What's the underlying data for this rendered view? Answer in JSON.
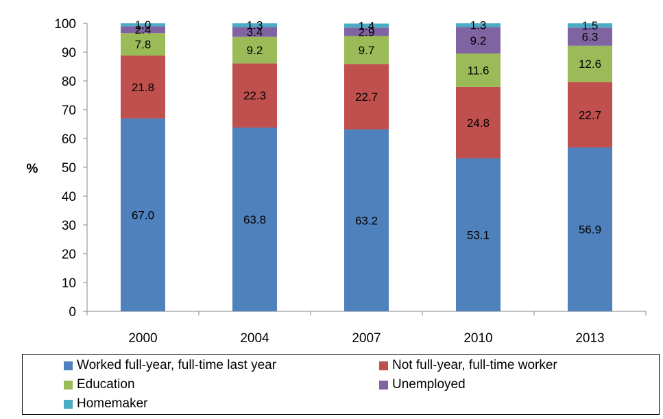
{
  "chart_data": {
    "type": "bar",
    "stacked": true,
    "title": "",
    "xlabel": "",
    "ylabel": "%",
    "ylim": [
      0,
      100
    ],
    "yticks": [
      0,
      10,
      20,
      30,
      40,
      50,
      60,
      70,
      80,
      90,
      100
    ],
    "categories": [
      "2000",
      "2004",
      "2007",
      "2010",
      "2013"
    ],
    "series": [
      {
        "name": "Worked full-year, full-time last year",
        "color": "#4F81BD",
        "values": [
          67.0,
          63.8,
          63.2,
          53.1,
          56.9
        ],
        "labels": [
          "67.0",
          "63.8",
          "63.2",
          "53.1",
          "56.9"
        ]
      },
      {
        "name": "Not full-year, full-time worker",
        "color": "#C0504D",
        "values": [
          21.8,
          22.3,
          22.7,
          24.8,
          22.7
        ],
        "labels": [
          "21.8",
          "22.3",
          "22.7",
          "24.8",
          "22.7"
        ]
      },
      {
        "name": "Education",
        "color": "#9BBB59",
        "values": [
          7.8,
          9.2,
          9.7,
          11.6,
          12.6
        ],
        "labels": [
          "7.8",
          "9.2",
          "9.7",
          "11.6",
          "12.6"
        ]
      },
      {
        "name": "Unemployed",
        "color": "#8064A2",
        "values": [
          2.4,
          3.4,
          2.9,
          9.2,
          6.3
        ],
        "labels": [
          "2.4",
          "3.4",
          "2.9",
          "9.2",
          "6.3"
        ]
      },
      {
        "name": "Homemaker",
        "color": "#4BACC6",
        "values": [
          1.0,
          1.3,
          1.4,
          1.3,
          1.5
        ],
        "labels": [
          "1.0",
          "1.3",
          "1.4",
          "1.3",
          "1.5"
        ]
      }
    ],
    "grid": false,
    "legend_position": "bottom"
  }
}
